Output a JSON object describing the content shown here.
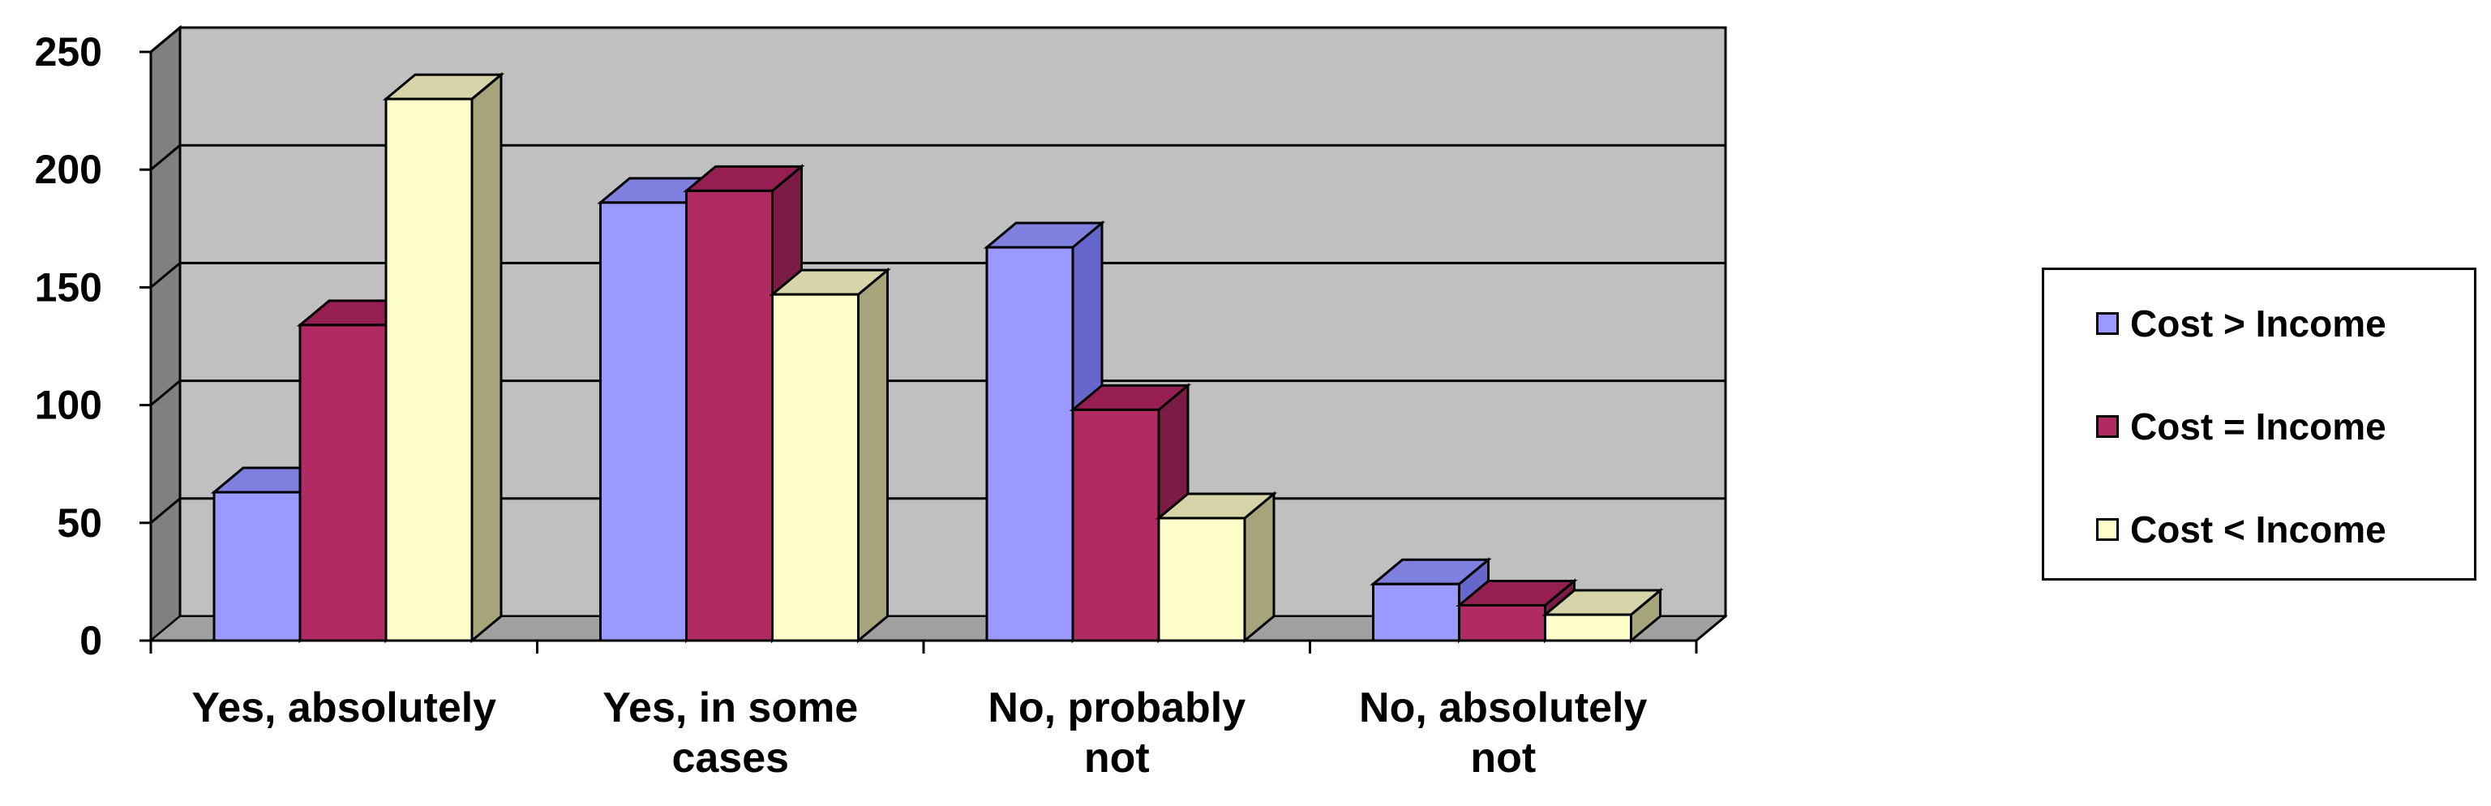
{
  "chart_data": {
    "type": "bar",
    "categories": [
      [
        "Yes, absolutely"
      ],
      [
        "Yes, in some",
        "cases"
      ],
      [
        "No, probably",
        "not"
      ],
      [
        "No, absolutely",
        "not"
      ]
    ],
    "series": [
      {
        "name": "Cost > Income",
        "values": [
          63,
          186,
          167,
          24
        ],
        "front": "#9999ff",
        "side": "#6666cc",
        "top": "#7f7fe0"
      },
      {
        "name": "Cost = Income",
        "values": [
          134,
          191,
          98,
          15
        ],
        "front": "#b02b63",
        "side": "#7a1c45",
        "top": "#951f52"
      },
      {
        "name": "Cost < Income",
        "values": [
          230,
          147,
          52,
          11
        ],
        "front": "#ffffcc",
        "side": "#a6a47a",
        "top": "#d6d4a8"
      }
    ],
    "y_ticks": [
      "0",
      "50",
      "100",
      "150",
      "200",
      "250"
    ],
    "ylim": [
      0,
      250
    ],
    "grid": true,
    "legend_position": "right",
    "colors": {
      "wall": "#c0c0c0",
      "side_wall": "#808080",
      "floor": "#a0a0a0"
    }
  }
}
